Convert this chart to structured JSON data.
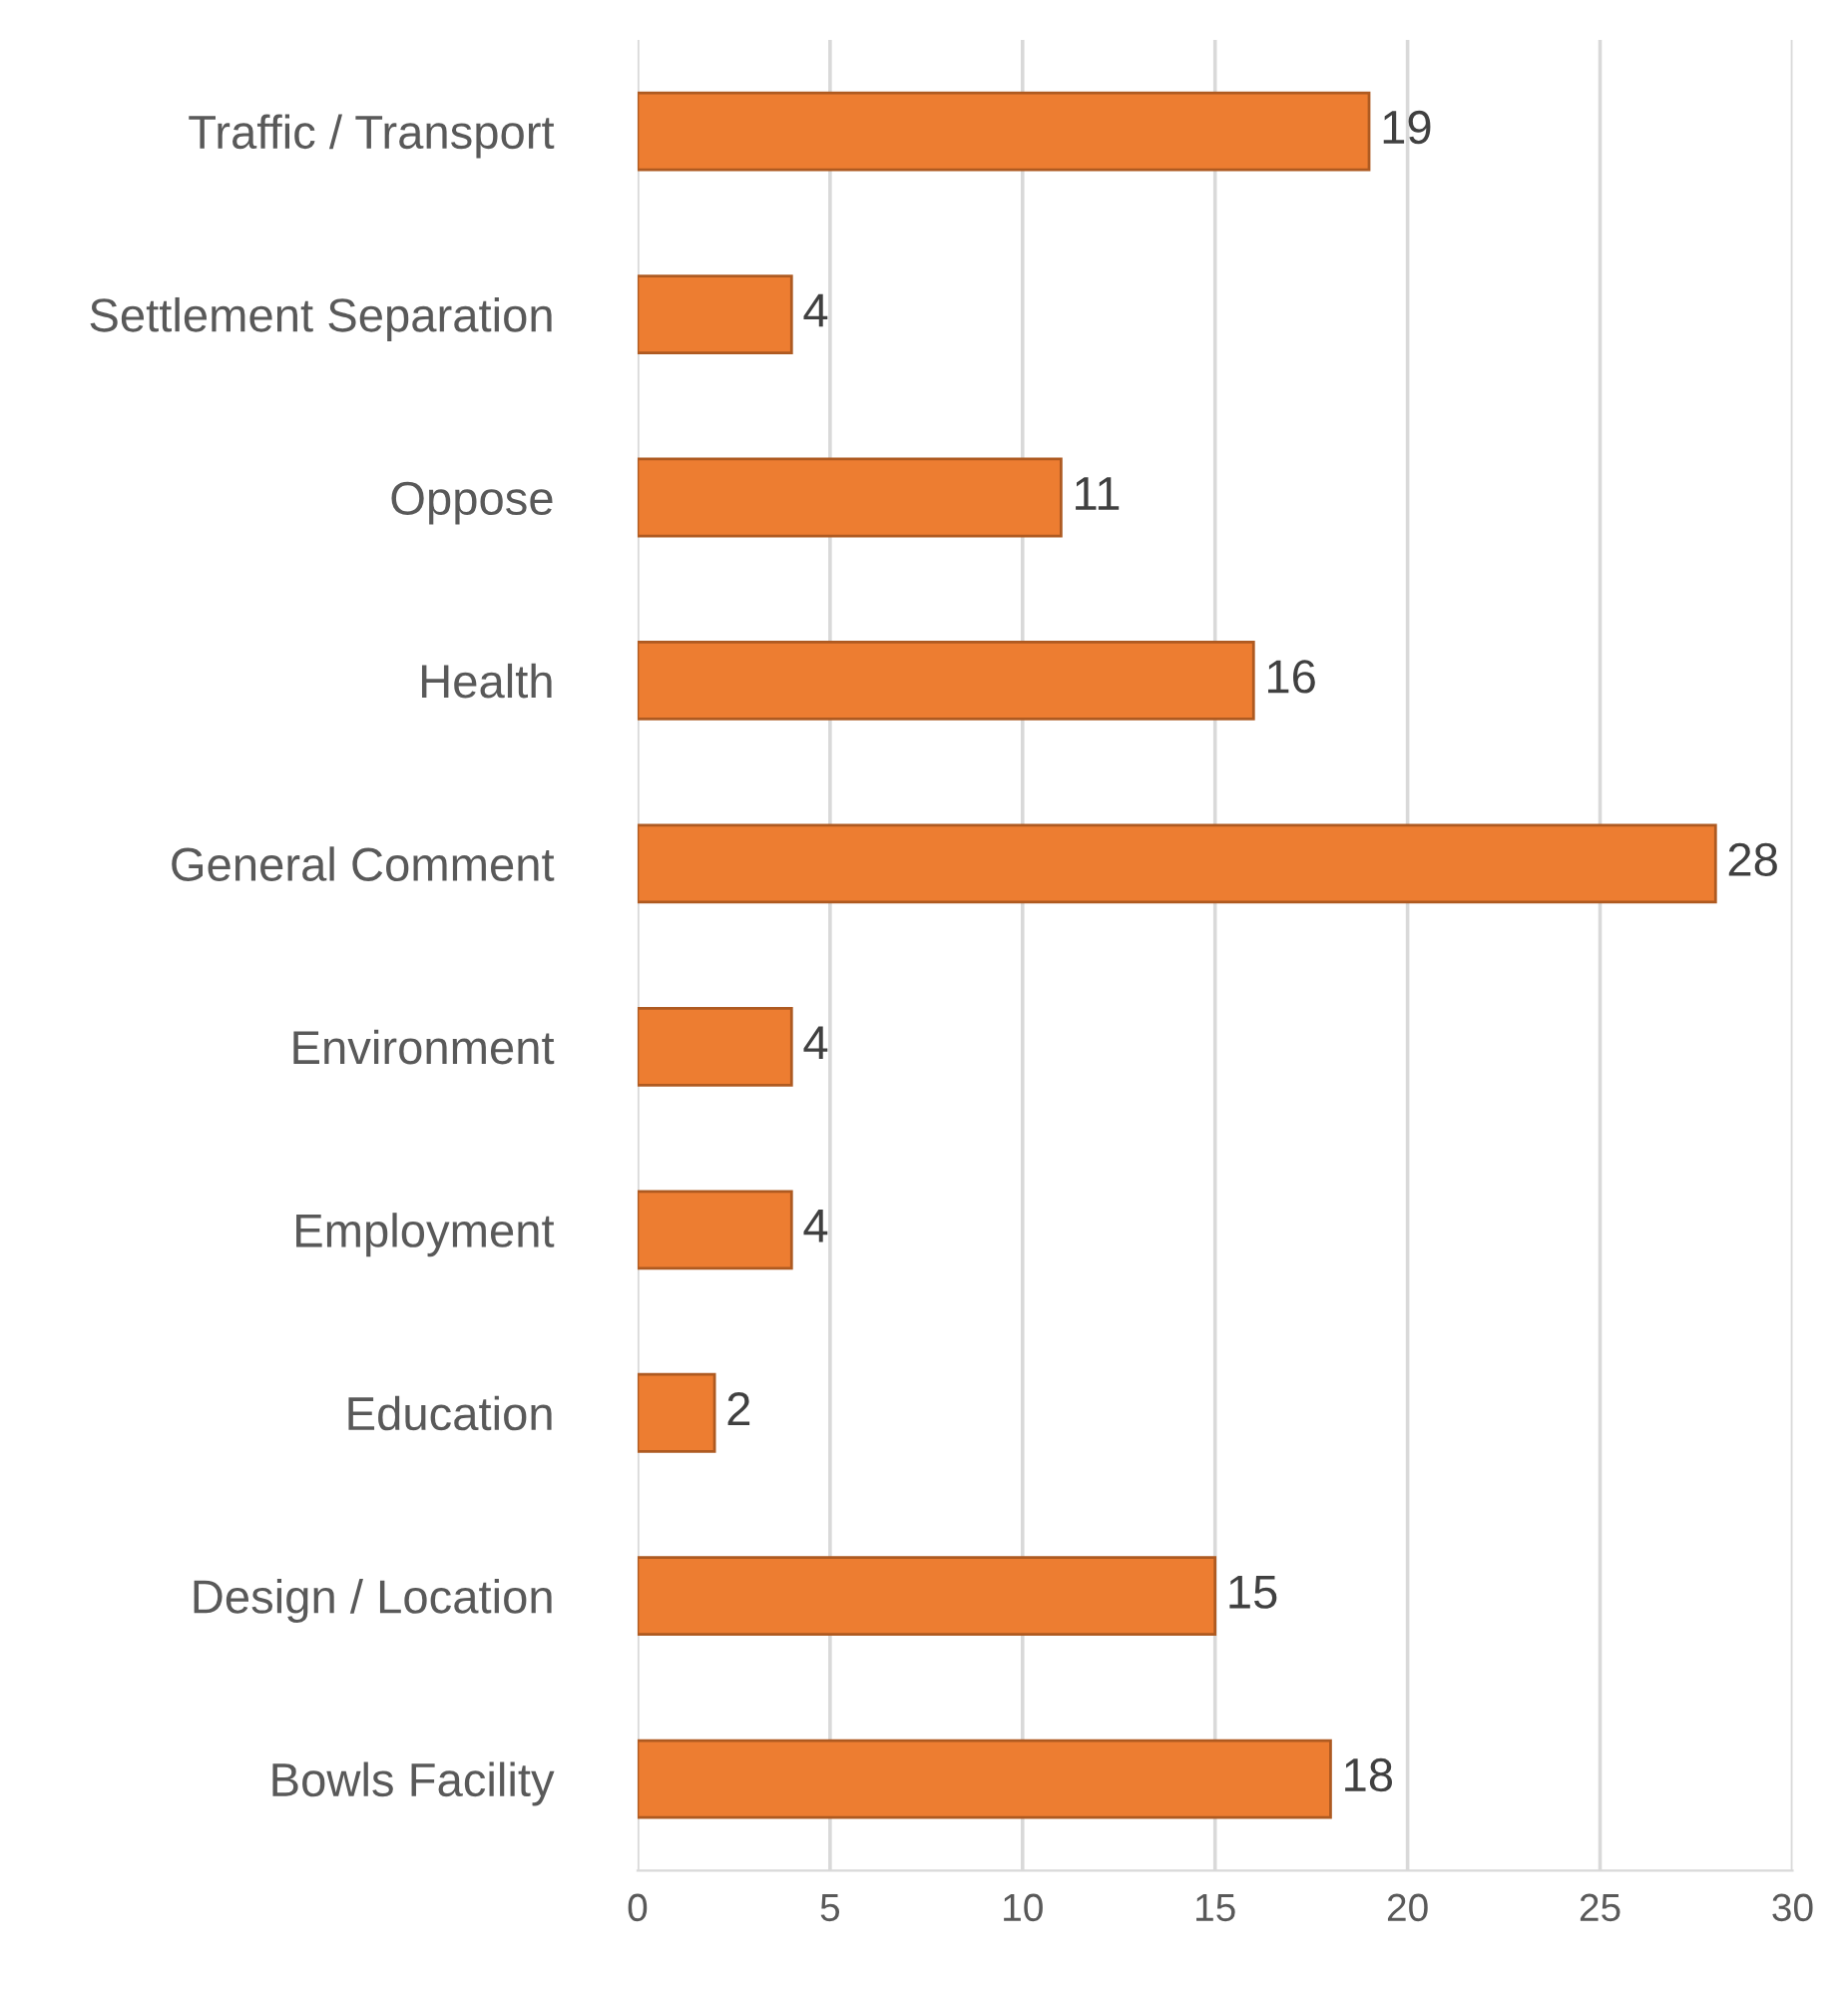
{
  "chart_data": {
    "type": "bar",
    "orientation": "horizontal",
    "categories": [
      "Traffic / Transport",
      "Settlement Separation",
      "Oppose",
      "Health",
      "General Comment",
      "Environment",
      "Employment",
      "Education",
      "Design / Location",
      "Bowls Facility"
    ],
    "values": [
      19,
      4,
      11,
      16,
      28,
      4,
      4,
      2,
      15,
      18
    ],
    "color": "#ed7d31",
    "xlim": [
      0,
      30
    ],
    "xticks": [
      0,
      5,
      10,
      15,
      20,
      25,
      30
    ],
    "grid": "x",
    "data_labels": true
  }
}
